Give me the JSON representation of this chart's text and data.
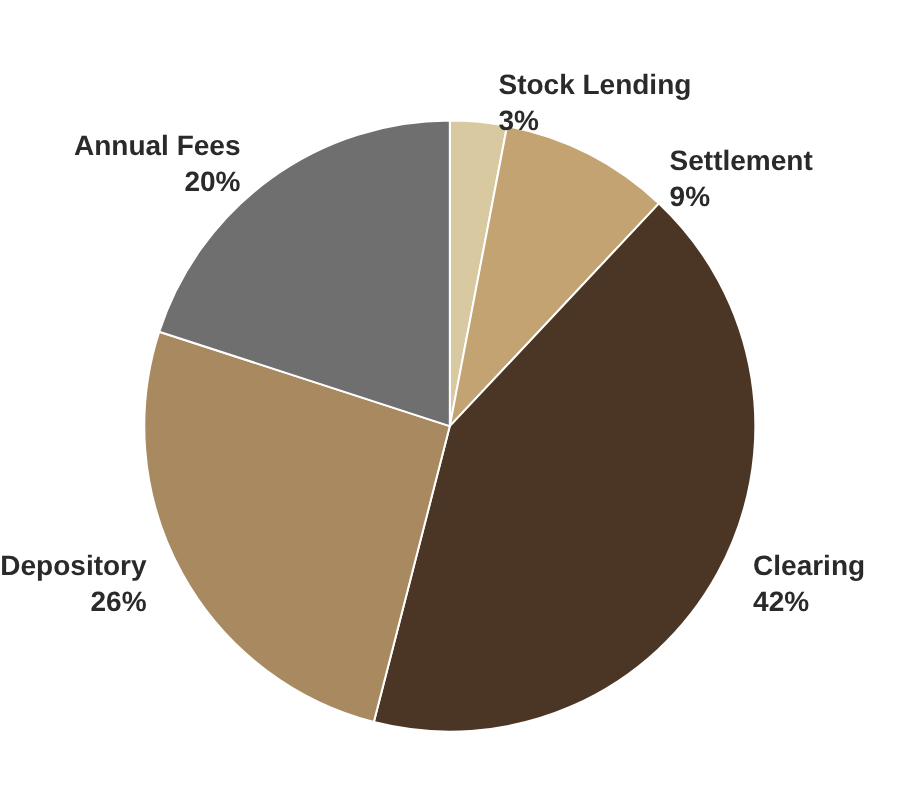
{
  "chart_data": {
    "type": "pie",
    "categories": [
      "Stock Lending",
      "Settlement",
      "Clearing",
      "Depository",
      "Annual Fees"
    ],
    "values": [
      3,
      9,
      42,
      26,
      20
    ],
    "colors": [
      "#d9c9a0",
      "#c2a371",
      "#4b3525",
      "#a9895f",
      "#6f6f6f"
    ],
    "legend": false,
    "value_labels": [
      "3%",
      "9%",
      "42%",
      "26%",
      "20%"
    ]
  }
}
